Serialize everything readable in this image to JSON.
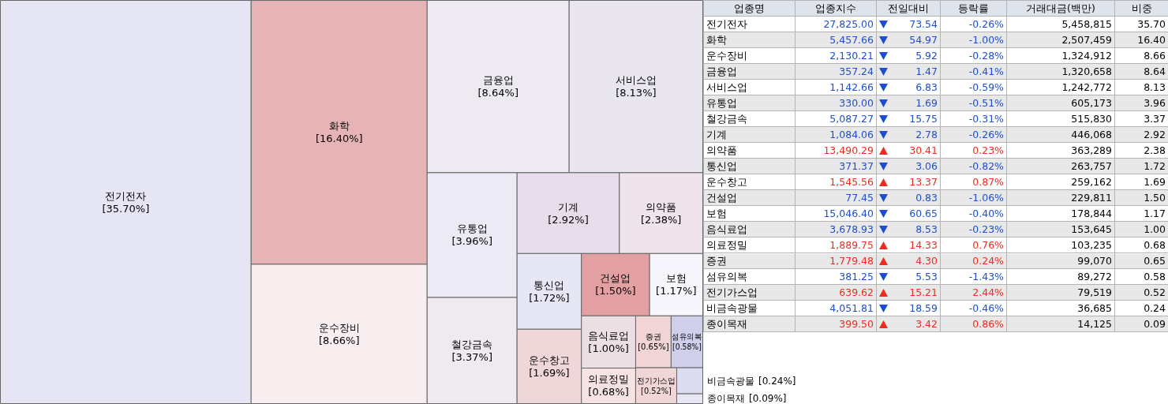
{
  "chart_data": [
    {
      "type": "other",
      "categories": [
        "전기전자",
        "화학",
        "운수장비",
        "금융업",
        "서비스업",
        "유통업",
        "철강금속",
        "기계",
        "의약품",
        "통신업",
        "운수창고",
        "건설업",
        "보험",
        "음식료업",
        "의료정밀",
        "증권",
        "섬유의복",
        "전기가스업",
        "비금속광물",
        "종이목재"
      ],
      "values": [
        35.7,
        16.4,
        8.66,
        8.64,
        8.13,
        3.96,
        3.37,
        2.92,
        2.38,
        1.72,
        1.69,
        1.5,
        1.17,
        1.0,
        0.68,
        0.65,
        0.58,
        0.52,
        0.24,
        0.09
      ],
      "value_labels": [
        "[35.70%]",
        "[16.40%]",
        "[8.66%]",
        "[8.64%]",
        "[8.13%]",
        "[3.96%]",
        "[3.37%]",
        "[2.92%]",
        "[2.38%]",
        "[1.72%]",
        "[1.69%]",
        "[1.50%]",
        "[1.17%]",
        "[1.00%]",
        "[0.68%]",
        "[0.65%]",
        "[0.58%]",
        "[0.52%]",
        "[0.24%]",
        "[0.09%]"
      ],
      "colors": [
        "#e5e5f3",
        "#e6b4b6",
        "#f9eeef",
        "#eeeaf2",
        "#eae6f0",
        "#ecebf5",
        "#eeeaf0",
        "#e6dcea",
        "#efe4ec",
        "#e6e6f4",
        "#eed6d9",
        "#e3a0a2",
        "#f6f6fc",
        "#ecdfe4",
        "#f5e2e3",
        "#f0d4d6",
        "#cfcfeb",
        "#f1d6d8",
        "#dcdcf0",
        "#e8e8f4"
      ]
    },
    {
      "type": "other",
      "ylabel": "업종명",
      "categories": [
        "전기전자",
        "화학",
        "운수장비",
        "금융업",
        "서비스업",
        "유통업",
        "철강금속",
        "기계",
        "의약품",
        "통신업",
        "운수창고",
        "건설업",
        "보험",
        "음식료업",
        "의료정밀",
        "증권",
        "섬유의복",
        "전기가스업",
        "비금속광물",
        "종이목재"
      ],
      "series": [
        {
          "name": "업종지수",
          "values": [
            27825.0,
            5457.66,
            2130.21,
            357.24,
            1142.66,
            330.0,
            5087.27,
            1084.06,
            13490.29,
            371.37,
            1545.56,
            77.45,
            15046.4,
            3678.93,
            1889.75,
            1779.48,
            381.25,
            639.62,
            4051.81,
            399.5
          ],
          "value_labels": [
            "27,825.00",
            "5,457.66",
            "2,130.21",
            "357.24",
            "1,142.66",
            "330.00",
            "5,087.27",
            "1,084.06",
            "13,490.29",
            "371.37",
            "1,545.56",
            "77.45",
            "15,046.40",
            "3,678.93",
            "1,889.75",
            "1,779.48",
            "381.25",
            "639.62",
            "4,051.81",
            "399.50"
          ],
          "colors": [
            "#1f4fd0",
            "#1f4fd0",
            "#1f4fd0",
            "#1f4fd0",
            "#1f4fd0",
            "#1f4fd0",
            "#1f4fd0",
            "#1f4fd0",
            "#ee2b1f",
            "#1f4fd0",
            "#ee2b1f",
            "#1f4fd0",
            "#1f4fd0",
            "#1f4fd0",
            "#ee2b1f",
            "#ee2b1f",
            "#1f4fd0",
            "#ee2b1f",
            "#1f4fd0",
            "#ee2b1f"
          ]
        },
        {
          "name": "전일대비",
          "marker": "triangle",
          "values": [
            73.54,
            54.97,
            5.92,
            1.47,
            6.83,
            1.69,
            15.75,
            2.78,
            30.41,
            3.06,
            13.37,
            0.83,
            60.65,
            8.53,
            14.33,
            4.3,
            5.53,
            15.21,
            18.59,
            3.42
          ],
          "value_labels": [
            "73.54",
            "54.97",
            "5.92",
            "1.47",
            "6.83",
            "1.69",
            "15.75",
            "2.78",
            "30.41",
            "3.06",
            "13.37",
            "0.83",
            "60.65",
            "8.53",
            "14.33",
            "4.30",
            "5.53",
            "15.21",
            "18.59",
            "3.42"
          ],
          "colors": [
            "#1f4fd0",
            "#1f4fd0",
            "#1f4fd0",
            "#1f4fd0",
            "#1f4fd0",
            "#1f4fd0",
            "#1f4fd0",
            "#1f4fd0",
            "#ee2b1f",
            "#1f4fd0",
            "#ee2b1f",
            "#1f4fd0",
            "#1f4fd0",
            "#1f4fd0",
            "#ee2b1f",
            "#ee2b1f",
            "#1f4fd0",
            "#ee2b1f",
            "#1f4fd0",
            "#ee2b1f"
          ]
        },
        {
          "name": "등락률",
          "values": [
            -0.26,
            -1.0,
            -0.28,
            -0.41,
            -0.59,
            -0.51,
            -0.31,
            -0.26,
            0.23,
            -0.82,
            0.87,
            -1.06,
            -0.4,
            -0.23,
            0.76,
            0.24,
            -1.43,
            2.44,
            -0.46,
            0.86
          ],
          "value_labels": [
            "-0.26%",
            "-1.00%",
            "-0.28%",
            "-0.41%",
            "-0.59%",
            "-0.51%",
            "-0.31%",
            "-0.26%",
            "0.23%",
            "-0.82%",
            "0.87%",
            "-1.06%",
            "-0.40%",
            "-0.23%",
            "0.76%",
            "0.24%",
            "-1.43%",
            "2.44%",
            "-0.46%",
            "0.86%"
          ],
          "colors": [
            "#1f4fd0",
            "#1f4fd0",
            "#1f4fd0",
            "#1f4fd0",
            "#1f4fd0",
            "#1f4fd0",
            "#1f4fd0",
            "#1f4fd0",
            "#ee2b1f",
            "#1f4fd0",
            "#ee2b1f",
            "#1f4fd0",
            "#1f4fd0",
            "#1f4fd0",
            "#ee2b1f",
            "#ee2b1f",
            "#1f4fd0",
            "#ee2b1f",
            "#1f4fd0",
            "#ee2b1f"
          ]
        },
        {
          "name": "거래대금(백만)",
          "color": "#000000",
          "values": [
            5458815,
            2507459,
            1324912,
            1320658,
            1242772,
            605173,
            515830,
            446068,
            363289,
            263757,
            259162,
            229811,
            178844,
            153645,
            103235,
            99070,
            89272,
            79519,
            36685,
            14125
          ],
          "value_labels": [
            "5,458,815",
            "2,507,459",
            "1,324,912",
            "1,320,658",
            "1,242,772",
            "605,173",
            "515,830",
            "446,068",
            "363,289",
            "263,757",
            "259,162",
            "229,811",
            "178,844",
            "153,645",
            "103,235",
            "99,070",
            "89,272",
            "79,519",
            "36,685",
            "14,125"
          ]
        },
        {
          "name": "비중",
          "color": "#000000",
          "values": [
            35.7,
            16.4,
            8.66,
            8.64,
            8.13,
            3.96,
            3.37,
            2.92,
            2.38,
            1.72,
            1.69,
            1.5,
            1.17,
            1.0,
            0.68,
            0.65,
            0.58,
            0.52,
            0.24,
            0.09
          ],
          "value_labels": [
            "35.70",
            "16.40",
            "8.66",
            "8.64",
            "8.13",
            "3.96",
            "3.37",
            "2.92",
            "2.38",
            "1.72",
            "1.69",
            "1.50",
            "1.17",
            "1.00",
            "0.68",
            "0.65",
            "0.58",
            "0.52",
            "0.24",
            "0.09"
          ]
        }
      ]
    }
  ]
}
